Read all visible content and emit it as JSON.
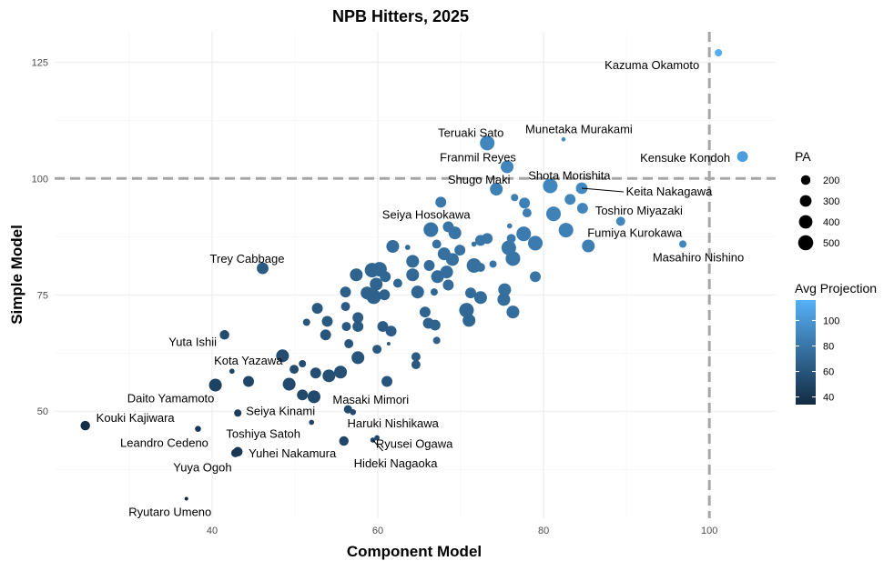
{
  "chart_data": {
    "type": "scatter",
    "title": "NPB Hitters, 2025",
    "xlabel": "Component Model",
    "ylabel": "Simple Model",
    "xlim": [
      21,
      108
    ],
    "ylim": [
      27,
      131.5
    ],
    "x_ticks": [
      40,
      60,
      80,
      100
    ],
    "y_ticks": [
      50,
      75,
      100,
      125
    ],
    "grid": true,
    "reference_lines": {
      "x": 100,
      "y": 100
    },
    "size_legend": {
      "title": "PA",
      "values": [
        200,
        300,
        400,
        500
      ],
      "placement": "right"
    },
    "color_legend": {
      "title": "Avg Projection",
      "ticks": [
        100,
        80,
        60,
        40
      ],
      "range": [
        34,
        116
      ],
      "low": "#132B43",
      "high": "#56B1F7",
      "placement": "right"
    },
    "points": [
      {
        "name": "Kazuma Okamoto",
        "x": 101.1,
        "y": 127.0,
        "pa": 120,
        "proj": 114
      },
      {
        "name": "Munetaka Murakami",
        "x": 82.4,
        "y": 108.4,
        "pa": 40,
        "proj": 95
      },
      {
        "name": "Teruaki Sato",
        "x": 73.2,
        "y": 107.6,
        "pa": 470,
        "proj": 90
      },
      {
        "name": "Kensuke Kondoh",
        "x": 104.0,
        "y": 104.7,
        "pa": 260,
        "proj": 104
      },
      {
        "name": "Franmil Reyes",
        "x": 75.6,
        "y": 102.5,
        "pa": 360,
        "proj": 89
      },
      {
        "name": "Shota Morishita",
        "x": 80.8,
        "y": 98.4,
        "pa": 470,
        "proj": 90
      },
      {
        "name": "Shugo Maki",
        "x": 74.3,
        "y": 97.7,
        "pa": 360,
        "proj": 86
      },
      {
        "name": "Keita Nakagawa",
        "x": 84.6,
        "y": 97.9,
        "pa": 300,
        "proj": 91
      },
      {
        "name": "Toshiro Miyazaki",
        "x": 84.7,
        "y": 93.6,
        "pa": 260,
        "proj": 89
      },
      {
        "name": "Fumiya Kurokawa",
        "x": 85.4,
        "y": 85.5,
        "pa": 360,
        "proj": 85
      },
      {
        "name": "Masahiro Nishino",
        "x": 96.8,
        "y": 85.9,
        "pa": 120,
        "proj": 91
      },
      {
        "name": "Seiya Hosokawa",
        "x": 67.6,
        "y": 94.9,
        "pa": 260,
        "proj": 81
      },
      {
        "name": "Trey Cabbage",
        "x": 46.1,
        "y": 80.7,
        "pa": 300,
        "proj": 63
      },
      {
        "name": "Yuta Ishii",
        "x": 41.5,
        "y": 66.4,
        "pa": 200,
        "proj": 54
      },
      {
        "name": "Kota Yazawa",
        "x": 42.4,
        "y": 58.6,
        "pa": 60,
        "proj": 50
      },
      {
        "name": "Daito Yamamoto",
        "x": 40.4,
        "y": 55.6,
        "pa": 360,
        "proj": 48
      },
      {
        "name": "Kouki Kajiwara",
        "x": 24.7,
        "y": 46.9,
        "pa": 200,
        "proj": 36
      },
      {
        "name": "Leandro Cedeno",
        "x": 38.3,
        "y": 46.2,
        "pa": 80,
        "proj": 42
      },
      {
        "name": "Seiya Kinami",
        "x": 43.1,
        "y": 49.6,
        "pa": 120,
        "proj": 46
      },
      {
        "name": "Toshiya Satoh",
        "x": 52.0,
        "y": 47.6,
        "pa": 60,
        "proj": 50
      },
      {
        "name": "Yuhei Nakamura",
        "x": 43.1,
        "y": 41.3,
        "pa": 200,
        "proj": 42
      },
      {
        "name": "Yuya Ogoh",
        "x": 42.8,
        "y": 41.0,
        "pa": 150,
        "proj": 42
      },
      {
        "name": "Ryutaro Umeno",
        "x": 36.9,
        "y": 31.2,
        "pa": 30,
        "proj": 34
      },
      {
        "name": "Masaki Mimori",
        "x": 56.4,
        "y": 50.4,
        "pa": 150,
        "proj": 53
      },
      {
        "name": "Haruki Nishikawa",
        "x": 55.9,
        "y": 43.6,
        "pa": 200,
        "proj": 50
      },
      {
        "name": "Ryusei Ogawa",
        "x": 59.9,
        "y": 44.3,
        "pa": 60,
        "proj": 52
      },
      {
        "name": "Hideki Nagaoka",
        "x": 59.4,
        "y": 43.8,
        "pa": 60,
        "proj": 52
      },
      {
        "x": 57.0,
        "y": 49.8,
        "pa": 80,
        "proj": 53
      },
      {
        "x": 89.3,
        "y": 90.8,
        "pa": 180,
        "proj": 90
      },
      {
        "x": 76.5,
        "y": 95.9,
        "pa": 120,
        "proj": 86
      },
      {
        "x": 77.7,
        "y": 94.7,
        "pa": 260,
        "proj": 86
      },
      {
        "x": 78.0,
        "y": 92.6,
        "pa": 180,
        "proj": 85
      },
      {
        "x": 83.2,
        "y": 95.5,
        "pa": 260,
        "proj": 89
      },
      {
        "x": 81.2,
        "y": 92.4,
        "pa": 470,
        "proj": 87
      },
      {
        "x": 82.7,
        "y": 88.9,
        "pa": 470,
        "proj": 86
      },
      {
        "x": 66.4,
        "y": 89.0,
        "pa": 470,
        "proj": 78
      },
      {
        "x": 68.5,
        "y": 89.6,
        "pa": 260,
        "proj": 79
      },
      {
        "x": 69.3,
        "y": 88.3,
        "pa": 360,
        "proj": 79
      },
      {
        "x": 67.1,
        "y": 85.9,
        "pa": 180,
        "proj": 77
      },
      {
        "x": 68.0,
        "y": 83.8,
        "pa": 360,
        "proj": 76
      },
      {
        "x": 69.0,
        "y": 82.6,
        "pa": 360,
        "proj": 76
      },
      {
        "x": 69.9,
        "y": 84.6,
        "pa": 260,
        "proj": 77
      },
      {
        "x": 61.8,
        "y": 85.4,
        "pa": 360,
        "proj": 74
      },
      {
        "x": 63.6,
        "y": 85.2,
        "pa": 60,
        "proj": 74
      },
      {
        "x": 64.2,
        "y": 82.2,
        "pa": 360,
        "proj": 73
      },
      {
        "x": 66.2,
        "y": 81.3,
        "pa": 260,
        "proj": 74
      },
      {
        "x": 64.2,
        "y": 79.3,
        "pa": 360,
        "proj": 72
      },
      {
        "x": 64.8,
        "y": 75.6,
        "pa": 360,
        "proj": 70
      },
      {
        "x": 66.8,
        "y": 75.6,
        "pa": 117,
        "proj": 71
      },
      {
        "x": 67.2,
        "y": 78.9,
        "pa": 360,
        "proj": 73
      },
      {
        "x": 68.3,
        "y": 79.9,
        "pa": 360,
        "proj": 74
      },
      {
        "x": 68.5,
        "y": 77.1,
        "pa": 260,
        "proj": 73
      },
      {
        "x": 71.6,
        "y": 85.9,
        "pa": 60,
        "proj": 79
      },
      {
        "x": 72.4,
        "y": 86.7,
        "pa": 260,
        "proj": 80
      },
      {
        "x": 73.2,
        "y": 87.1,
        "pa": 260,
        "proj": 80
      },
      {
        "x": 73.9,
        "y": 81.6,
        "pa": 117,
        "proj": 78
      },
      {
        "x": 71.6,
        "y": 81.3,
        "pa": 470,
        "proj": 76
      },
      {
        "x": 72.4,
        "y": 80.9,
        "pa": 180,
        "proj": 77
      },
      {
        "x": 75.9,
        "y": 89.8,
        "pa": 60,
        "proj": 83
      },
      {
        "x": 76.1,
        "y": 87.1,
        "pa": 180,
        "proj": 82
      },
      {
        "x": 77.6,
        "y": 88.1,
        "pa": 470,
        "proj": 83
      },
      {
        "x": 79.0,
        "y": 86.1,
        "pa": 470,
        "proj": 83
      },
      {
        "x": 75.8,
        "y": 85.1,
        "pa": 470,
        "proj": 80
      },
      {
        "x": 76.3,
        "y": 82.8,
        "pa": 470,
        "proj": 80
      },
      {
        "x": 79.0,
        "y": 78.9,
        "pa": 260,
        "proj": 79
      },
      {
        "x": 71.2,
        "y": 75.4,
        "pa": 260,
        "proj": 73
      },
      {
        "x": 72.4,
        "y": 74.4,
        "pa": 360,
        "proj": 73
      },
      {
        "x": 75.3,
        "y": 76.1,
        "pa": 360,
        "proj": 76
      },
      {
        "x": 75.2,
        "y": 74.0,
        "pa": 360,
        "proj": 75
      },
      {
        "x": 76.3,
        "y": 71.3,
        "pa": 360,
        "proj": 74
      },
      {
        "x": 70.7,
        "y": 71.7,
        "pa": 470,
        "proj": 71
      },
      {
        "x": 71.0,
        "y": 69.5,
        "pa": 360,
        "proj": 70
      },
      {
        "x": 65.7,
        "y": 71.3,
        "pa": 260,
        "proj": 69
      },
      {
        "x": 66.1,
        "y": 68.9,
        "pa": 260,
        "proj": 68
      },
      {
        "x": 66.9,
        "y": 68.5,
        "pa": 260,
        "proj": 68
      },
      {
        "x": 67.1,
        "y": 65.2,
        "pa": 117,
        "proj": 66
      },
      {
        "x": 59.3,
        "y": 80.3,
        "pa": 470,
        "proj": 70
      },
      {
        "x": 60.2,
        "y": 80.5,
        "pa": 470,
        "proj": 70
      },
      {
        "x": 60.9,
        "y": 78.9,
        "pa": 260,
        "proj": 70
      },
      {
        "x": 62.4,
        "y": 77.5,
        "pa": 180,
        "proj": 70
      },
      {
        "x": 57.4,
        "y": 79.3,
        "pa": 360,
        "proj": 68
      },
      {
        "x": 59.8,
        "y": 77.3,
        "pa": 360,
        "proj": 69
      },
      {
        "x": 58.7,
        "y": 75.4,
        "pa": 360,
        "proj": 67
      },
      {
        "x": 59.5,
        "y": 74.6,
        "pa": 470,
        "proj": 67
      },
      {
        "x": 60.8,
        "y": 75.0,
        "pa": 260,
        "proj": 68
      },
      {
        "x": 56.1,
        "y": 75.6,
        "pa": 260,
        "proj": 66
      },
      {
        "x": 56.1,
        "y": 72.5,
        "pa": 180,
        "proj": 64
      },
      {
        "x": 52.7,
        "y": 72.1,
        "pa": 260,
        "proj": 62
      },
      {
        "x": 51.4,
        "y": 69.1,
        "pa": 117,
        "proj": 60
      },
      {
        "x": 53.9,
        "y": 69.3,
        "pa": 260,
        "proj": 62
      },
      {
        "x": 53.7,
        "y": 66.4,
        "pa": 260,
        "proj": 60
      },
      {
        "x": 56.2,
        "y": 68.2,
        "pa": 180,
        "proj": 62
      },
      {
        "x": 57.6,
        "y": 70.1,
        "pa": 260,
        "proj": 64
      },
      {
        "x": 57.6,
        "y": 68.2,
        "pa": 260,
        "proj": 63
      },
      {
        "x": 60.6,
        "y": 68.2,
        "pa": 260,
        "proj": 64
      },
      {
        "x": 61.6,
        "y": 67.2,
        "pa": 260,
        "proj": 64
      },
      {
        "x": 56.5,
        "y": 64.5,
        "pa": 180,
        "proj": 60
      },
      {
        "x": 57.6,
        "y": 61.7,
        "pa": 260,
        "proj": 60
      },
      {
        "x": 61.3,
        "y": 64.5,
        "pa": 30,
        "proj": 63
      },
      {
        "x": 64.6,
        "y": 61.7,
        "pa": 180,
        "proj": 63
      },
      {
        "x": 64.6,
        "y": 60.0,
        "pa": 180,
        "proj": 62
      },
      {
        "x": 59.9,
        "y": 63.3,
        "pa": 180,
        "proj": 62
      },
      {
        "x": 61.1,
        "y": 56.4,
        "pa": 260,
        "proj": 59
      },
      {
        "x": 44.4,
        "y": 56.4,
        "pa": 260,
        "proj": 50
      },
      {
        "x": 48.5,
        "y": 61.9,
        "pa": 360,
        "proj": 55
      },
      {
        "x": 49.9,
        "y": 59.0,
        "pa": 180,
        "proj": 54
      },
      {
        "x": 50.9,
        "y": 60.2,
        "pa": 117,
        "proj": 55
      },
      {
        "x": 49.3,
        "y": 55.8,
        "pa": 360,
        "proj": 53
      },
      {
        "x": 50.9,
        "y": 53.5,
        "pa": 260,
        "proj": 52
      },
      {
        "x": 52.3,
        "y": 53.1,
        "pa": 360,
        "proj": 53
      },
      {
        "x": 52.5,
        "y": 58.2,
        "pa": 260,
        "proj": 55
      },
      {
        "x": 54.1,
        "y": 57.6,
        "pa": 360,
        "proj": 56
      },
      {
        "x": 55.5,
        "y": 58.4,
        "pa": 360,
        "proj": 57
      },
      {
        "x": 57.6,
        "y": 61.5,
        "pa": 360,
        "proj": 60
      }
    ]
  }
}
